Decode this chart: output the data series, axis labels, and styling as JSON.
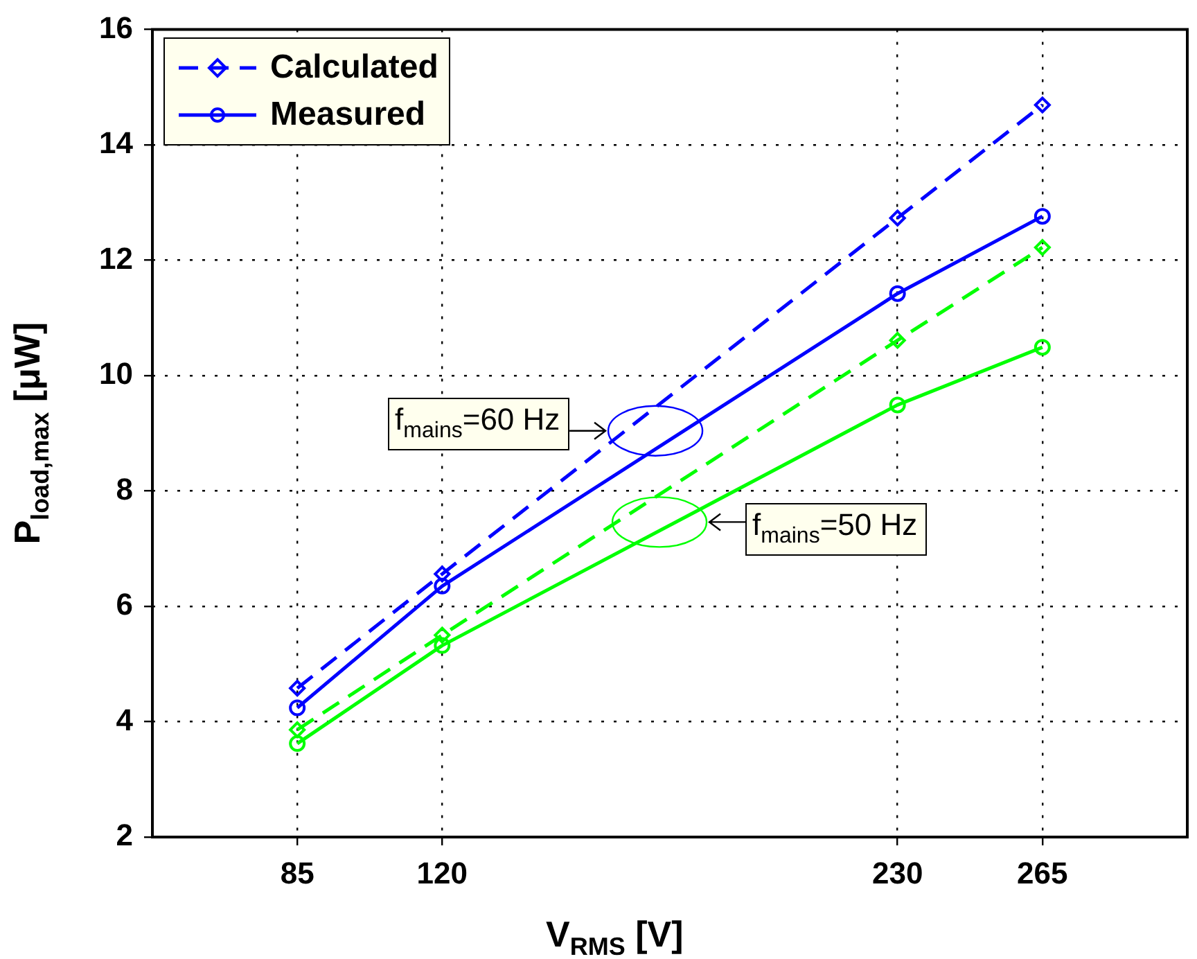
{
  "chart_data": {
    "type": "line",
    "xlabel": "V$_{RMS}$ [V]",
    "ylabel": "P$_{load,max}$ [μW]",
    "x": [
      85,
      120,
      230,
      265
    ],
    "xlim": [
      50,
      300
    ],
    "xticks": [
      85,
      120,
      230,
      265
    ],
    "ylim": [
      2,
      16
    ],
    "yticks": [
      2,
      4,
      6,
      8,
      10,
      12,
      14,
      16
    ],
    "grid": true,
    "legend": "top left",
    "series": [
      {
        "name": "Calculated",
        "color": "#0000ff",
        "marker": "diamond",
        "line_style": "dashed",
        "values": [
          4.58,
          6.56,
          12.73,
          14.69
        ]
      },
      {
        "name": "Measured",
        "color": "#0000ff",
        "marker": "circle",
        "line_style": "solid",
        "values": [
          4.24,
          6.35,
          11.42,
          12.76
        ]
      },
      {
        "color": "#00ff00",
        "marker": "diamond",
        "line_style": "dashed",
        "values": [
          3.86,
          5.5,
          10.61,
          12.22
        ]
      },
      {
        "color": "#00ff00",
        "marker": "circle",
        "line_style": "solid",
        "values": [
          3.62,
          5.32,
          9.49,
          10.49
        ]
      }
    ],
    "annotations": [
      "f$_{mains}$=60 Hz",
      "f$_{mains}$=50 Hz"
    ]
  }
}
